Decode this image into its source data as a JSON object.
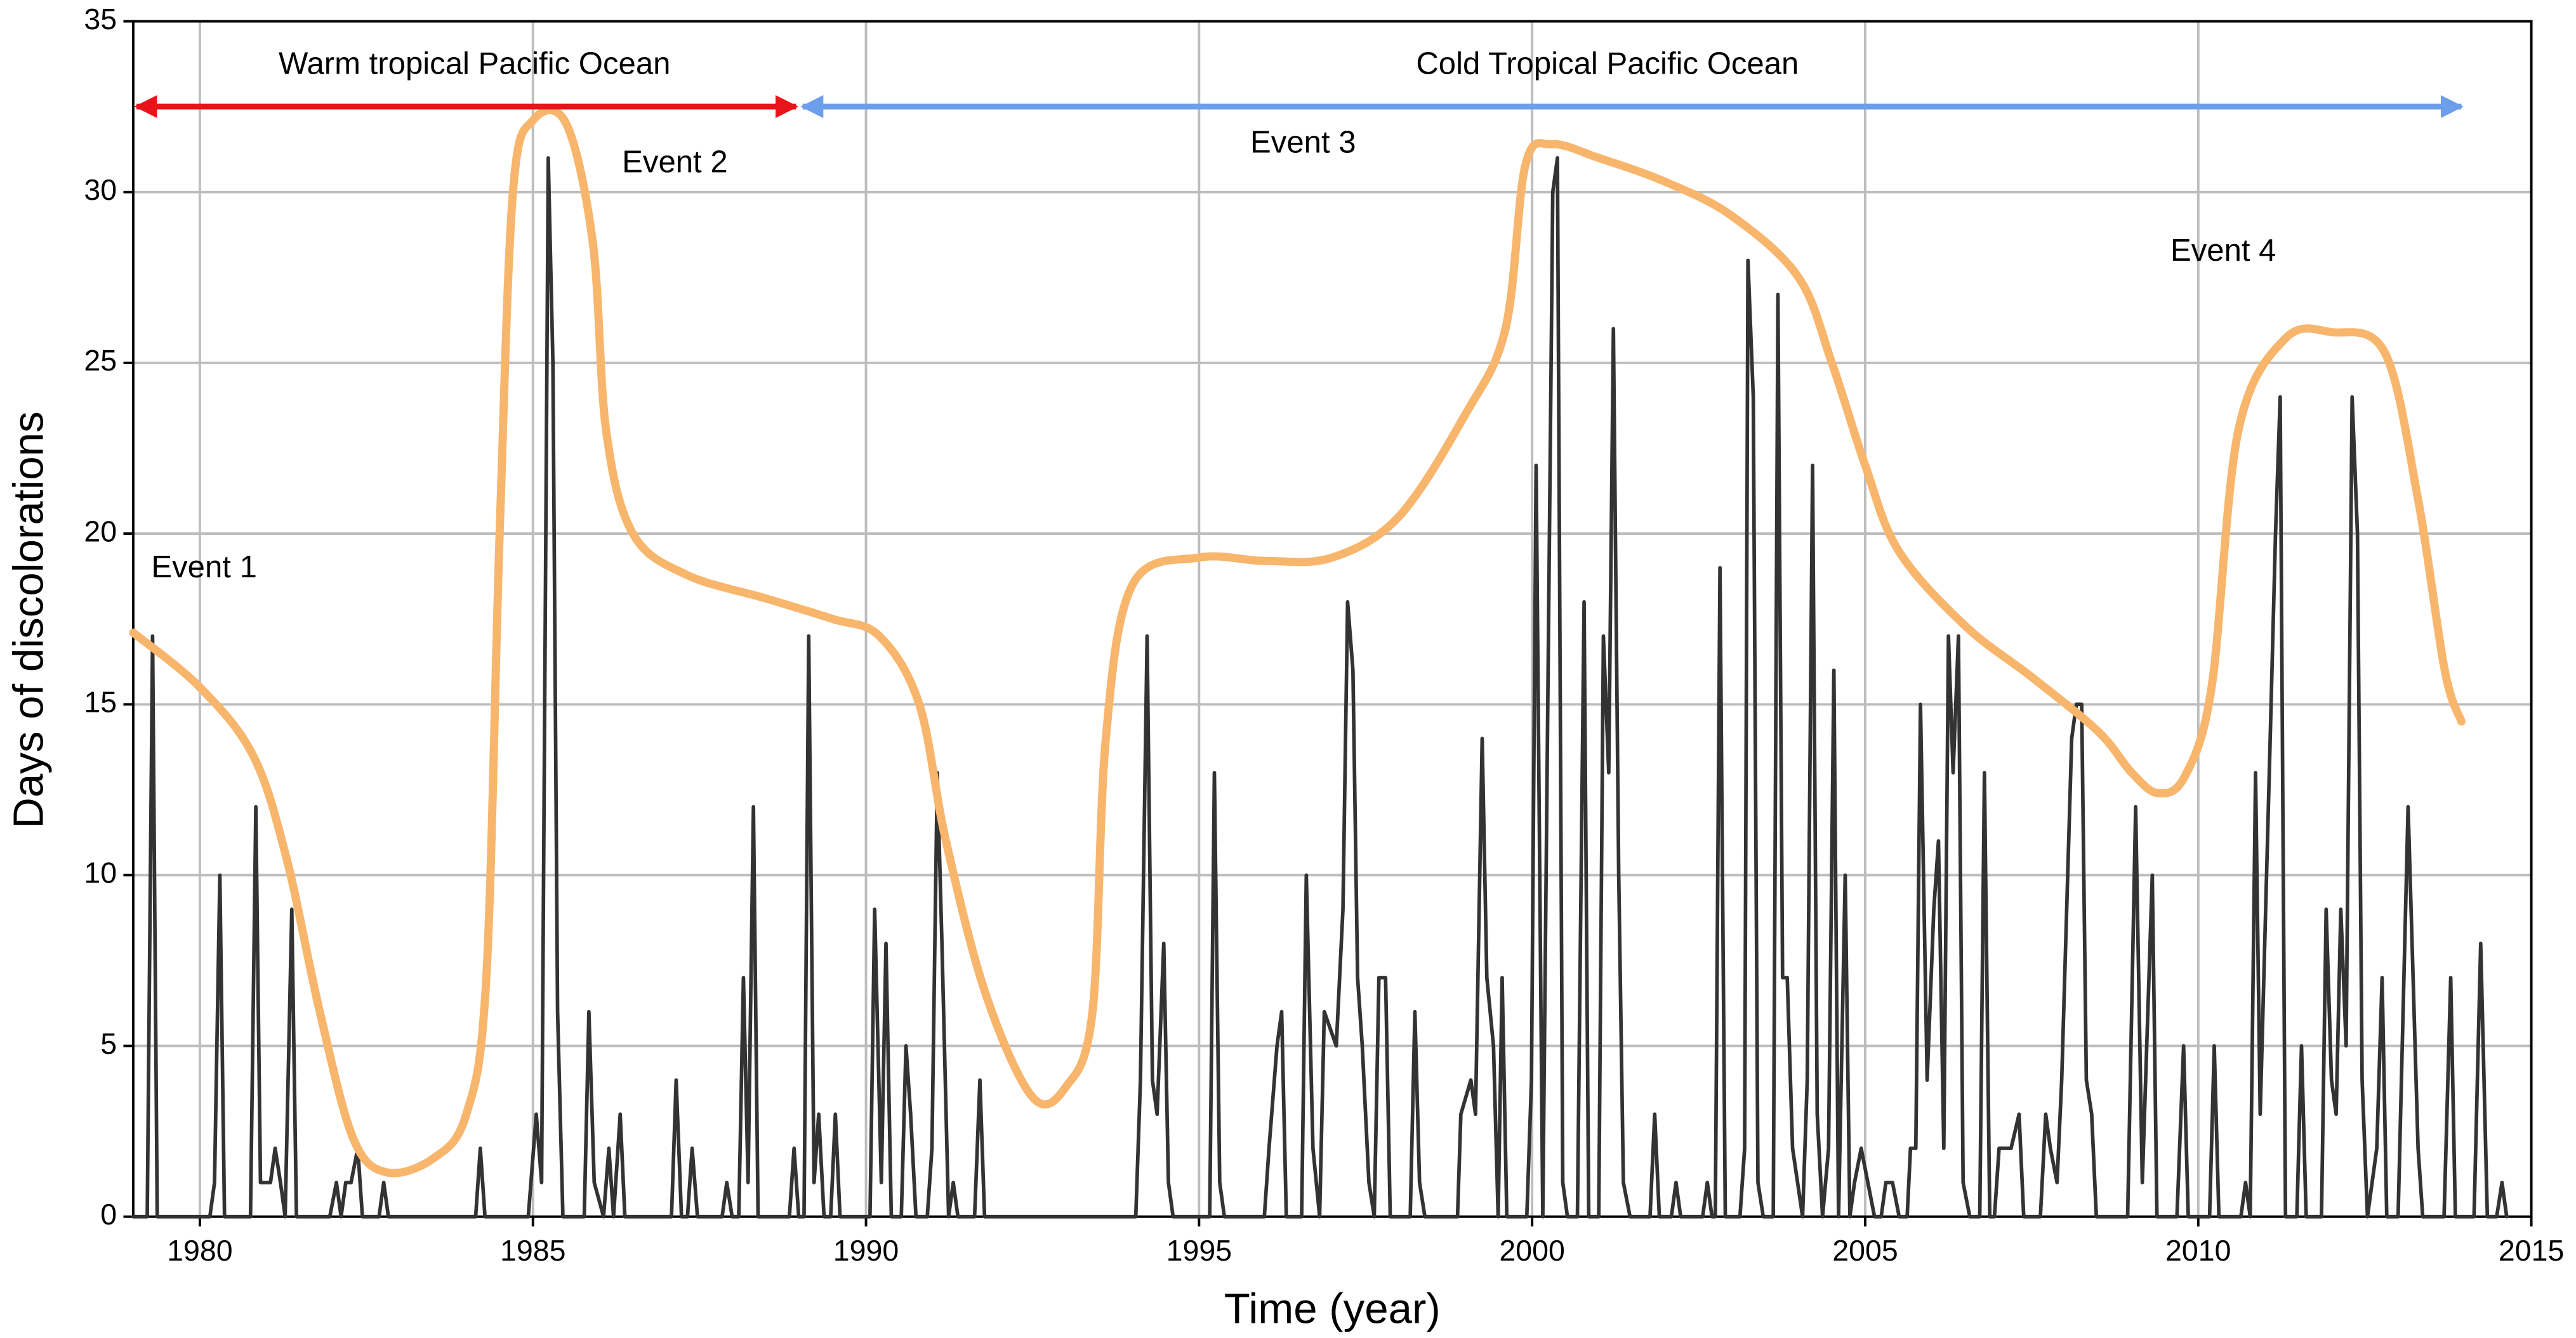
{
  "chart_data": {
    "type": "line",
    "xlabel": "Time (year)",
    "ylabel": "Days of discolorations",
    "xlim": [
      1979,
      2015
    ],
    "ylim": [
      0,
      35
    ],
    "xticks": [
      1980,
      1985,
      1990,
      1995,
      2000,
      2005,
      2010,
      2015
    ],
    "yticks": [
      0,
      5,
      10,
      15,
      20,
      25,
      30,
      35
    ],
    "grid": true,
    "periods": [
      {
        "label": "Warm tropical Pacific Ocean",
        "x": [
          1979,
          1989
        ],
        "color": "#e8141a"
      },
      {
        "label": "Cold Tropical Pacific Ocean",
        "x": [
          1989,
          2014
        ],
        "color": "#6d9eeb"
      }
    ],
    "annotations": [
      "Event 1",
      "Event 2",
      "Event 3",
      "Event 4"
    ],
    "series": [
      {
        "color": "#333333",
        "smooth": false,
        "x": [
          1979.0,
          1979.21,
          1979.29,
          1979.36,
          1980.15,
          1980.22,
          1980.3,
          1980.37,
          1980.76,
          1980.84,
          1980.91,
          1981.06,
          1981.13,
          1981.21,
          1981.28,
          1981.38,
          1981.45,
          1981.95,
          1982.05,
          1982.12,
          1982.19,
          1982.27,
          1982.37,
          1982.44,
          1982.69,
          1982.76,
          1982.83,
          1984.14,
          1984.21,
          1984.28,
          1984.93,
          1985.05,
          1985.13,
          1985.23,
          1985.3,
          1985.37,
          1985.45,
          1985.77,
          1985.84,
          1985.92,
          1986.06,
          1986.14,
          1986.21,
          1986.31,
          1986.38,
          1987.08,
          1987.15,
          1987.23,
          1987.32,
          1987.39,
          1987.47,
          1987.84,
          1987.91,
          1987.99,
          1988.09,
          1988.16,
          1988.23,
          1988.31,
          1988.38,
          1988.85,
          1988.92,
          1988.99,
          1989.07,
          1989.14,
          1989.22,
          1989.29,
          1989.37,
          1989.47,
          1989.54,
          1989.61,
          1990.06,
          1990.13,
          1990.23,
          1990.3,
          1990.38,
          1990.53,
          1990.6,
          1990.67,
          1990.75,
          1990.92,
          1990.99,
          1991.07,
          1991.14,
          1991.24,
          1991.31,
          1991.38,
          1991.63,
          1991.71,
          1991.78,
          1994.05,
          1994.12,
          1994.22,
          1994.3,
          1994.37,
          1994.47,
          1994.54,
          1994.61,
          1995.16,
          1995.23,
          1995.31,
          1995.38,
          1995.98,
          1996.05,
          1996.17,
          1996.24,
          1996.31,
          1996.54,
          1996.61,
          1996.71,
          1996.81,
          1996.88,
          1997.06,
          1997.16,
          1997.23,
          1997.31,
          1997.38,
          1997.45,
          1997.55,
          1997.63,
          1997.7,
          1997.8,
          1997.87,
          1998.17,
          1998.24,
          1998.31,
          1998.39,
          1998.88,
          1998.93,
          1999.08,
          1999.15,
          1999.25,
          1999.32,
          1999.42,
          1999.49,
          1999.55,
          1999.62,
          1999.92,
          1999.99,
          2000.06,
          2000.16,
          2000.26,
          2000.31,
          2000.38,
          2000.46,
          2000.53,
          2000.68,
          2000.78,
          2000.85,
          2001.0,
          2001.07,
          2001.15,
          2001.22,
          2001.3,
          2001.37,
          2001.47,
          2001.77,
          2001.84,
          2001.91,
          2002.09,
          2002.16,
          2002.23,
          2002.56,
          2002.63,
          2002.7,
          2002.75,
          2002.82,
          2002.9,
          2003.12,
          2003.19,
          2003.24,
          2003.32,
          2003.39,
          2003.47,
          2003.62,
          2003.69,
          2003.76,
          2003.83,
          2003.91,
          2004.06,
          2004.13,
          2004.21,
          2004.28,
          2004.36,
          2004.45,
          2004.53,
          2004.6,
          2004.7,
          2004.77,
          2004.84,
          2004.94,
          2005.04,
          2005.14,
          2005.24,
          2005.31,
          2005.41,
          2005.51,
          2005.63,
          2005.68,
          2005.76,
          2005.83,
          2005.93,
          2006.03,
          2006.1,
          2006.18,
          2006.25,
          2006.32,
          2006.4,
          2006.47,
          2006.57,
          2006.72,
          2006.79,
          2006.87,
          2006.94,
          2007.01,
          2007.09,
          2007.19,
          2007.31,
          2007.38,
          2007.63,
          2007.71,
          2007.78,
          2007.88,
          2007.95,
          2008.1,
          2008.17,
          2008.25,
          2008.32,
          2008.4,
          2008.47,
          2008.94,
          2009.06,
          2009.16,
          2009.31,
          2009.38,
          2009.68,
          2009.78,
          2009.85,
          2010.17,
          2010.24,
          2010.31,
          2010.64,
          2010.71,
          2010.78,
          2010.86,
          2010.93,
          2011.08,
          2011.16,
          2011.23,
          2011.31,
          2011.48,
          2011.55,
          2011.62,
          2011.85,
          2011.92,
          2012.0,
          2012.07,
          2012.14,
          2012.22,
          2012.31,
          2012.39,
          2012.46,
          2012.54,
          2012.68,
          2012.76,
          2012.83,
          2013.0,
          2013.15,
          2013.3,
          2013.37,
          2013.69,
          2013.79,
          2013.86,
          2014.14,
          2014.24,
          2014.34,
          2014.48,
          2014.56,
          2014.63
        ],
        "values": [
          0,
          0,
          17,
          0,
          0,
          1,
          10,
          0,
          0,
          12,
          1,
          1,
          2,
          1,
          0,
          9,
          0,
          0,
          1,
          0,
          1,
          1,
          2,
          0,
          0,
          1,
          0,
          0,
          2,
          0,
          0,
          3,
          1,
          31,
          25,
          6,
          0,
          0,
          6,
          1,
          0,
          2,
          0,
          3,
          0,
          0,
          4,
          0,
          0,
          2,
          0,
          0,
          1,
          0,
          0,
          7,
          1,
          12,
          0,
          0,
          2,
          0,
          0,
          17,
          1,
          3,
          0,
          0,
          3,
          0,
          0,
          9,
          1,
          8,
          0,
          0,
          5,
          3,
          0,
          0,
          2,
          13,
          8,
          0,
          1,
          0,
          0,
          4,
          0,
          0,
          4,
          17,
          4,
          3,
          8,
          1,
          0,
          0,
          13,
          1,
          0,
          0,
          2,
          5,
          6,
          0,
          0,
          10,
          2,
          0,
          6,
          5,
          9,
          18,
          16,
          7,
          5,
          1,
          0,
          7,
          7,
          0,
          0,
          6,
          1,
          0,
          0,
          3,
          4,
          3,
          14,
          7,
          5,
          0,
          7,
          0,
          0,
          4,
          22,
          0,
          20,
          30,
          31,
          1,
          0,
          0,
          18,
          0,
          0,
          17,
          13,
          26,
          10,
          1,
          0,
          0,
          3,
          0,
          0,
          1,
          0,
          0,
          1,
          0,
          0,
          19,
          0,
          0,
          2,
          28,
          24,
          1,
          0,
          0,
          27,
          7,
          7,
          2,
          0,
          4,
          22,
          3,
          0,
          2,
          16,
          0,
          10,
          0,
          1,
          2,
          1,
          0,
          0,
          1,
          1,
          0,
          0,
          2,
          2,
          15,
          4,
          9,
          11,
          2,
          17,
          13,
          17,
          1,
          0,
          0,
          13,
          0,
          0,
          2,
          2,
          2,
          3,
          0,
          0,
          3,
          2,
          1,
          4,
          14,
          15,
          15,
          4,
          3,
          0,
          0,
          12,
          1,
          10,
          0,
          0,
          5,
          0,
          0,
          5,
          0,
          0,
          1,
          0,
          13,
          3,
          14,
          20,
          24,
          0,
          0,
          5,
          0,
          0,
          9,
          4,
          3,
          9,
          5,
          24,
          20,
          4,
          0,
          2,
          7,
          0,
          0,
          12,
          2,
          0,
          0,
          7,
          0,
          0,
          8,
          0,
          0,
          1,
          0
        ]
      },
      {
        "color": "#f8b56c",
        "smooth": true,
        "x": [
          1979.0,
          1980.0,
          1980.8,
          1981.3,
          1981.8,
          1982.3,
          1982.8,
          1983.5,
          1984.0,
          1984.3,
          1984.5,
          1984.7,
          1985.0,
          1985.5,
          1985.9,
          1986.1,
          1986.5,
          1987.3,
          1988.5,
          1989.5,
          1990.2,
          1990.8,
          1991.2,
          1991.8,
          1992.5,
          1993.0,
          1993.4,
          1993.6,
          1994.0,
          1995.0,
          1996.0,
          1997.0,
          1998.0,
          1999.0,
          1999.6,
          1999.9,
          2000.3,
          2001.0,
          2002.0,
          2003.0,
          2004.0,
          2004.5,
          2005.0,
          2005.5,
          2006.5,
          2007.5,
          2008.5,
          2009.0,
          2009.4,
          2009.8,
          2010.2,
          2010.6,
          2011.3,
          2012.0,
          2012.8,
          2013.3,
          2013.7,
          2013.95
        ],
        "values": [
          17.1,
          15.5,
          13.5,
          10.5,
          6,
          2.3,
          1.3,
          1.7,
          3,
          7,
          20,
          30,
          32.1,
          32,
          28.5,
          23,
          20,
          18.8,
          18.1,
          17.5,
          17,
          15,
          11,
          6.5,
          3.5,
          3.8,
          6,
          14,
          18.5,
          19.3,
          19.2,
          19.3,
          20.5,
          23.5,
          26,
          30.8,
          31.4,
          31,
          30.3,
          29.3,
          27.5,
          25,
          22,
          19.5,
          17.3,
          15.8,
          14.2,
          13,
          12.4,
          12.9,
          15.5,
          23,
          25.7,
          25.9,
          25.3,
          21,
          16,
          14.5
        ]
      }
    ]
  }
}
